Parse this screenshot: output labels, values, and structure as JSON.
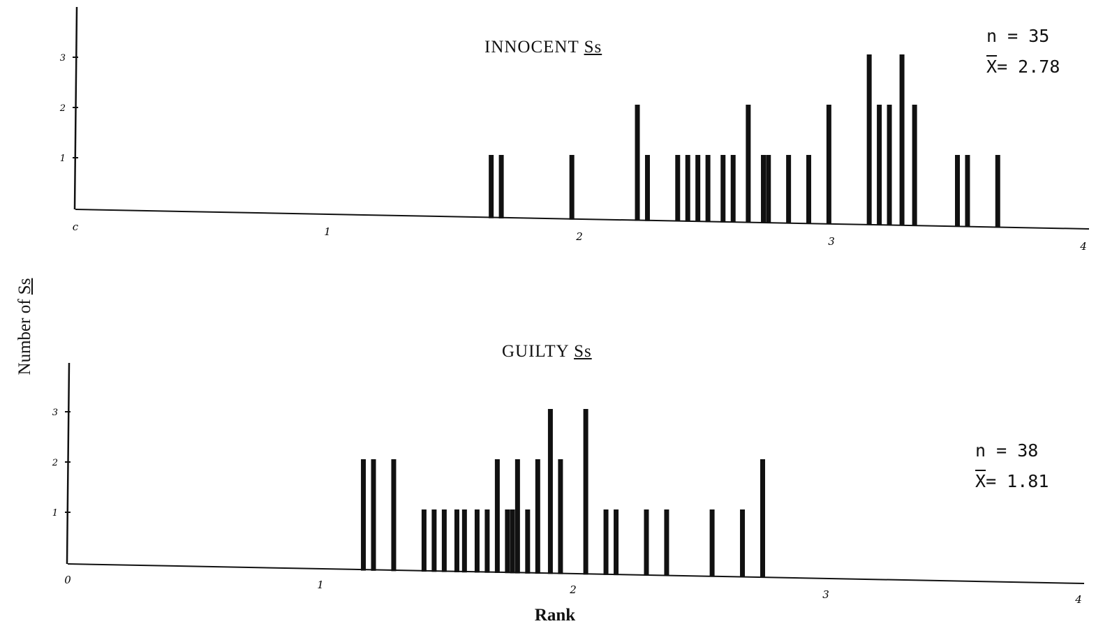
{
  "chart_data": [
    {
      "type": "bar",
      "title": "INNOCENT",
      "title_suffix": "Ss",
      "stats": {
        "n_label": "n = 35",
        "mean_label": "X",
        "mean_value": "= 2.78"
      },
      "xlim": [
        0,
        4
      ],
      "x_ticks": [
        "c",
        "1",
        "2",
        "3",
        "4"
      ],
      "ylim": [
        0,
        3
      ],
      "y_ticks": [
        "1",
        "2",
        "3"
      ],
      "x": [
        1.65,
        1.69,
        1.97,
        2.23,
        2.27,
        2.39,
        2.43,
        2.47,
        2.51,
        2.57,
        2.61,
        2.67,
        2.73,
        2.75,
        2.83,
        2.91,
        2.99,
        3.15,
        3.19,
        3.23,
        3.28,
        3.33,
        3.5,
        3.54,
        3.66
      ],
      "values": [
        1,
        1,
        1,
        2,
        1,
        1,
        1,
        1,
        1,
        1,
        1,
        2,
        1,
        1,
        1,
        1,
        2,
        3,
        2,
        2,
        3,
        2,
        1,
        1,
        1
      ]
    },
    {
      "type": "bar",
      "title": "GUILTY",
      "title_suffix": "Ss",
      "stats": {
        "n_label": "n = 38",
        "mean_label": "X",
        "mean_value": "= 1.81"
      },
      "xlim": [
        0,
        4
      ],
      "x_ticks": [
        "0",
        "1",
        "2",
        "3",
        "4"
      ],
      "ylim": [
        0,
        3
      ],
      "y_ticks": [
        "1",
        "2",
        "3"
      ],
      "x": [
        1.17,
        1.21,
        1.29,
        1.41,
        1.45,
        1.49,
        1.54,
        1.57,
        1.62,
        1.66,
        1.7,
        1.74,
        1.76,
        1.78,
        1.82,
        1.86,
        1.91,
        1.95,
        2.05,
        2.13,
        2.17,
        2.29,
        2.37,
        2.55,
        2.67,
        2.75
      ],
      "values": [
        2,
        2,
        2,
        1,
        1,
        1,
        1,
        1,
        1,
        1,
        2,
        1,
        1,
        2,
        1,
        2,
        3,
        2,
        3,
        1,
        1,
        1,
        1,
        1,
        1,
        2
      ]
    }
  ],
  "ylabel": "Number of",
  "ylabel_suffix": "Ss",
  "xlabel": "Rank"
}
